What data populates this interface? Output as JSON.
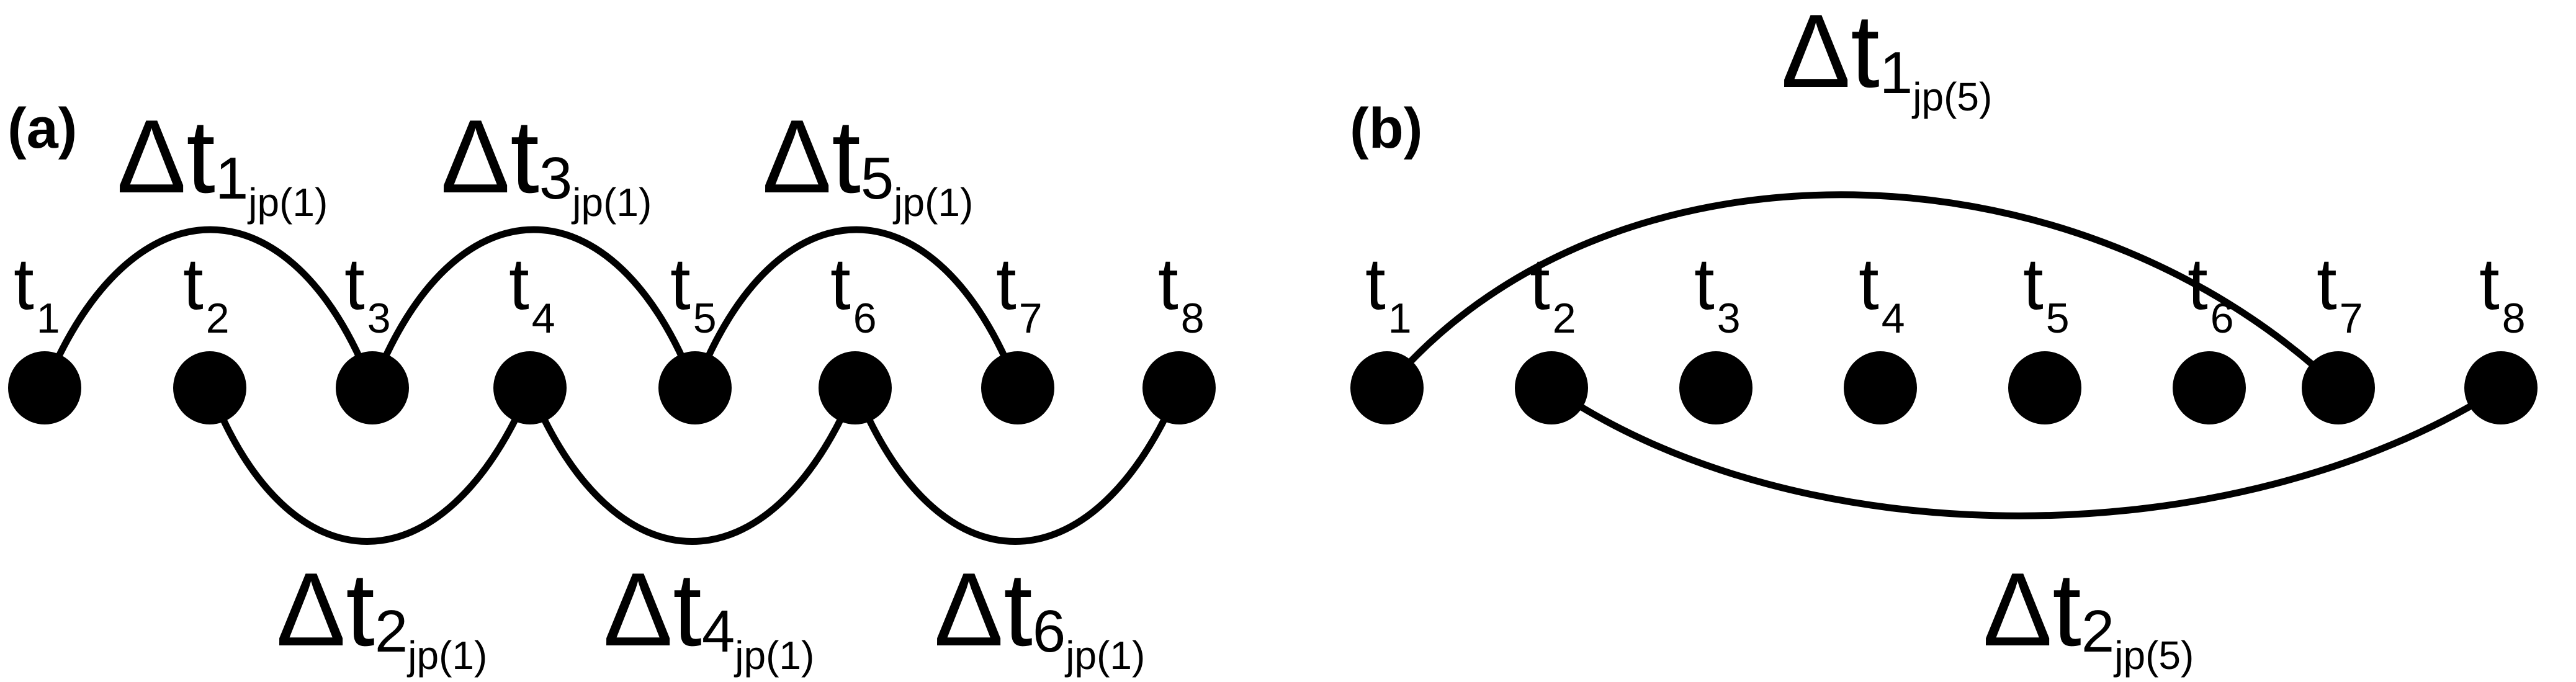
{
  "panel_a": {
    "label": "(a)",
    "nodes": [
      {
        "name": "t",
        "sub": "1"
      },
      {
        "name": "t",
        "sub": "2"
      },
      {
        "name": "t",
        "sub": "3"
      },
      {
        "name": "t",
        "sub": "4"
      },
      {
        "name": "t",
        "sub": "5"
      },
      {
        "name": "t",
        "sub": "6"
      },
      {
        "name": "t",
        "sub": "7"
      },
      {
        "name": "t",
        "sub": "8"
      }
    ],
    "intervals": [
      {
        "symbol": "Δt",
        "index": "1",
        "tag": "jp(1)"
      },
      {
        "symbol": "Δt",
        "index": "2",
        "tag": "jp(1)"
      },
      {
        "symbol": "Δt",
        "index": "3",
        "tag": "jp(1)"
      },
      {
        "symbol": "Δt",
        "index": "4",
        "tag": "jp(1)"
      },
      {
        "symbol": "Δt",
        "index": "5",
        "tag": "jp(1)"
      },
      {
        "symbol": "Δt",
        "index": "6",
        "tag": "jp(1)"
      }
    ]
  },
  "panel_b": {
    "label": "(b)",
    "nodes": [
      {
        "name": "t",
        "sub": "1"
      },
      {
        "name": "t",
        "sub": "2"
      },
      {
        "name": "t",
        "sub": "3"
      },
      {
        "name": "t",
        "sub": "4"
      },
      {
        "name": "t",
        "sub": "5"
      },
      {
        "name": "t",
        "sub": "6"
      },
      {
        "name": "t",
        "sub": "7"
      },
      {
        "name": "t",
        "sub": "8"
      }
    ],
    "intervals": [
      {
        "symbol": "Δt",
        "index": "1",
        "tag": "jp(5)"
      },
      {
        "symbol": "Δt",
        "index": "2",
        "tag": "jp(5)"
      }
    ]
  },
  "colors": {
    "stroke": "#000000",
    "background": "#ffffff"
  }
}
